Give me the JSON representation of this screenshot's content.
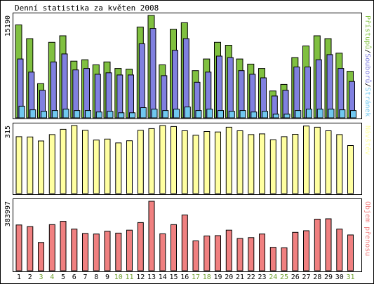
{
  "title": "Denní statistika za květen 2008",
  "colors": {
    "background": "#ffffff",
    "panel_border": "#000000",
    "pristupu": "#80c040",
    "souboru": "#8080e0",
    "stranek": "#70c8f0",
    "navstev": "#ffffa0",
    "objem": "#f08080",
    "day_label_weekday": "#000000",
    "day_label_weekend": "#70a030"
  },
  "chart_data": [
    {
      "type": "bar",
      "panel": "traffic",
      "ymax_label": "15190",
      "legend": [
        "Přístupů",
        "Souborů",
        "Stránek"
      ],
      "legend_separator": "/",
      "categories": [
        "1",
        "2",
        "3",
        "4",
        "5",
        "6",
        "7",
        "8",
        "9",
        "10",
        "11",
        "12",
        "13",
        "14",
        "15",
        "16",
        "17",
        "18",
        "19",
        "20",
        "21",
        "22",
        "23",
        "24",
        "25",
        "26",
        "27",
        "28",
        "29",
        "30",
        "31"
      ],
      "weekend": [
        false,
        false,
        true,
        true,
        false,
        false,
        false,
        false,
        false,
        true,
        true,
        false,
        false,
        false,
        false,
        false,
        true,
        true,
        false,
        false,
        false,
        false,
        false,
        true,
        true,
        false,
        false,
        false,
        false,
        false,
        true
      ],
      "series": [
        {
          "name": "Přístupů",
          "values": [
            12800,
            10900,
            4700,
            10400,
            11300,
            7800,
            8000,
            7300,
            7700,
            6800,
            6700,
            12500,
            14100,
            7300,
            12200,
            13100,
            6500,
            8100,
            10400,
            10000,
            8100,
            7400,
            6800,
            3700,
            4600,
            8300,
            9900,
            11300,
            10900,
            8900,
            6400
          ]
        },
        {
          "name": "Souborů",
          "values": [
            8100,
            6300,
            3800,
            7700,
            8800,
            6600,
            6800,
            6000,
            6200,
            5900,
            5900,
            10200,
            12300,
            5800,
            9300,
            10900,
            4900,
            6300,
            8500,
            8300,
            6500,
            6000,
            5500,
            3000,
            3800,
            7000,
            7000,
            8000,
            8700,
            6800,
            5000
          ]
        },
        {
          "name": "Stránek",
          "values": [
            1600,
            1100,
            900,
            1000,
            1200,
            1000,
            1000,
            800,
            900,
            700,
            700,
            1400,
            1200,
            1000,
            1200,
            1500,
            1000,
            1200,
            1000,
            900,
            1000,
            800,
            900,
            500,
            500,
            1000,
            1200,
            1200,
            1200,
            1100,
            1000
          ]
        }
      ]
    },
    {
      "type": "bar",
      "panel": "visits",
      "ymax_label": "315",
      "legend": [
        "Návštěv"
      ],
      "categories": [
        "1",
        "2",
        "3",
        "4",
        "5",
        "6",
        "7",
        "8",
        "9",
        "10",
        "11",
        "12",
        "13",
        "14",
        "15",
        "16",
        "17",
        "18",
        "19",
        "20",
        "21",
        "22",
        "23",
        "24",
        "25",
        "26",
        "27",
        "28",
        "29",
        "30",
        "31"
      ],
      "series": [
        {
          "name": "Návštěv",
          "values": [
            239,
            238,
            221,
            248,
            270,
            286,
            266,
            225,
            229,
            213,
            222,
            266,
            273,
            286,
            282,
            264,
            245,
            261,
            259,
            279,
            264,
            248,
            251,
            226,
            239,
            249,
            284,
            279,
            264,
            248,
            202
          ]
        }
      ]
    },
    {
      "type": "bar",
      "panel": "volume",
      "ymax_label": "383997",
      "legend": [
        "Objem přenosu"
      ],
      "categories": [
        "1",
        "2",
        "3",
        "4",
        "5",
        "6",
        "7",
        "8",
        "9",
        "10",
        "11",
        "12",
        "13",
        "14",
        "15",
        "16",
        "17",
        "18",
        "19",
        "20",
        "21",
        "22",
        "23",
        "24",
        "25",
        "26",
        "27",
        "28",
        "29",
        "30",
        "31"
      ],
      "series": [
        {
          "name": "Objem přenosu",
          "values": [
            253000,
            244000,
            156000,
            255000,
            273000,
            230000,
            206000,
            203000,
            218000,
            208000,
            224000,
            266000,
            383997,
            204000,
            255000,
            308000,
            165000,
            192000,
            194000,
            224000,
            178000,
            183000,
            203000,
            129000,
            127000,
            212000,
            221000,
            285000,
            287000,
            230000,
            198000
          ]
        }
      ]
    }
  ]
}
